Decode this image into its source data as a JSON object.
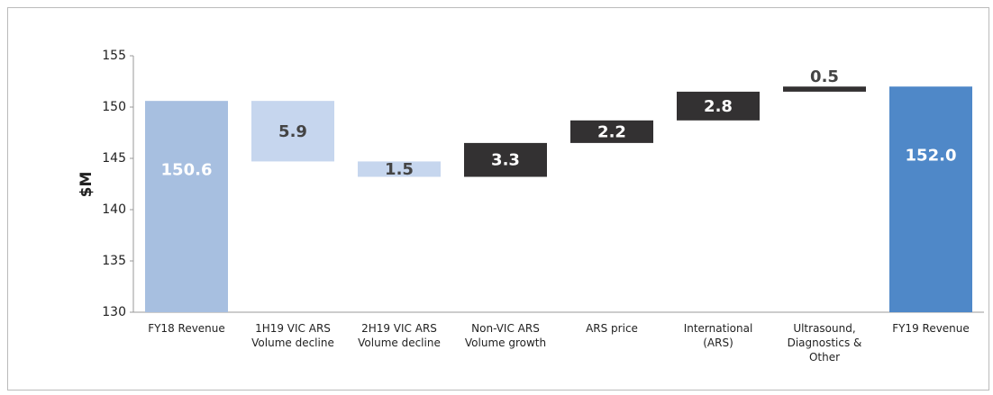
{
  "chart_data": {
    "type": "waterfall",
    "y_label": "$M",
    "categories": [
      "FY18 Revenue",
      "1H19 VIC ARS\nVolume decline",
      "2H19 VIC ARS\nVolume decline",
      "Non-VIC ARS\nVolume growth",
      "ARS price",
      "International\n(ARS)",
      "Ultrasound,\nDiagnostics &\nOther",
      "FY19 Revenue"
    ],
    "values": [
      150.6,
      -5.9,
      -1.5,
      3.3,
      2.2,
      2.8,
      0.5,
      152.0
    ],
    "value_labels": [
      "150.6",
      "5.9",
      "1.5",
      "3.3",
      "2.2",
      "2.8",
      "0.5",
      "152.0"
    ],
    "measure": [
      "absolute",
      "relative",
      "relative",
      "relative",
      "relative",
      "relative",
      "relative",
      "absolute"
    ],
    "colors": [
      "#a7bfe0",
      "#c6d6ee",
      "#c6d6ee",
      "#333132",
      "#333132",
      "#333132",
      "#333132",
      "#4f88c8"
    ],
    "ylim": [
      130,
      155
    ],
    "yticks": [
      130,
      135,
      140,
      145,
      150,
      155
    ],
    "grid": false
  }
}
